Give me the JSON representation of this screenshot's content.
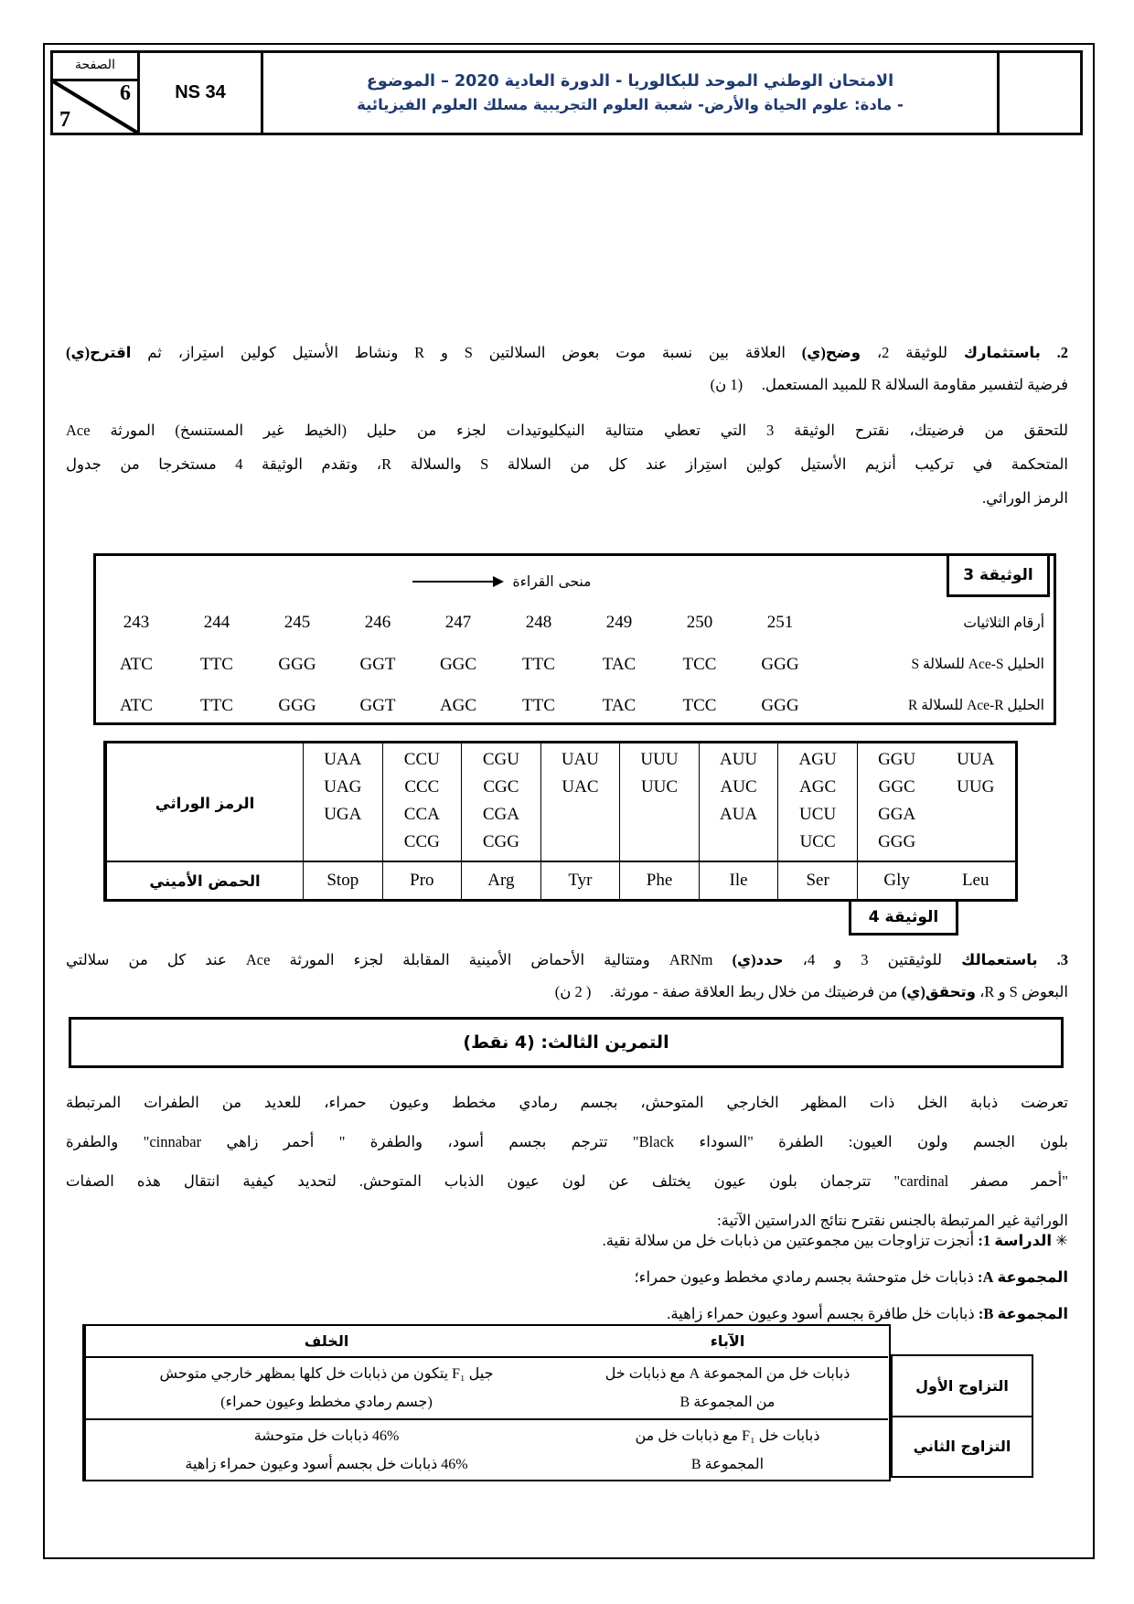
{
  "header": {
    "page_label": "الصفحة",
    "page_current": "6",
    "page_total": "7",
    "ns": "NS 34",
    "title_line1": "الامتحان الوطني الموحد للبكالوريا - الدورة العادية 2020 – الموضوع",
    "title_line2": "- مادة: علوم الحياة والأرض- شعبة العلوم التجريبية مسلك العلوم الفيزيائية",
    "title_color": "#1f3a70"
  },
  "q2": {
    "lines": [
      [
        {
          "b": true,
          "t": "2. باستثمارك"
        },
        {
          "b": false,
          "t": " للوثيقة 2، "
        },
        {
          "b": true,
          "t": "وضح(ي)"
        },
        {
          "b": false,
          "t": " العلاقة بين نسبة موت بعوض السلالتين S و R ونشاط الأستيل كولين استِراز، ثم "
        },
        {
          "b": true,
          "t": "اقترح(ي)"
        }
      ],
      [
        {
          "b": false,
          "t": "فرضية لتفسير مقاومة السلالة R للمبيد المستعمل."
        },
        {
          "b": false,
          "t": "     (1 ن)"
        }
      ]
    ]
  },
  "p2": {
    "lines": [
      "للتحقق من فرضيتك، نقترح الوثيقة 3 التي تعطي متتالية النيكليوتيدات لجزء من حليل (الخيط غير المستنسخ) المورثة Ace",
      "المتحكمة في تركيب أنزيم الأستيل كولين استِراز عند كل من السلالة S والسلالة R، وتقدم الوثيقة 4 مستخرجا من جدول",
      "الرمز الوراثي."
    ]
  },
  "doc3": {
    "label": "الوثيقة 3",
    "reading_direction_label": "منحى القراءة",
    "numbers_row_label": "أرقام الثلاثيات",
    "numbers": [
      "243",
      "244",
      "245",
      "246",
      "247",
      "248",
      "249",
      "250",
      "251"
    ],
    "allele_s_label": "الحليل Ace-S للسلالة S",
    "allele_s": [
      "ATC",
      "TTC",
      "GGG",
      "GGT",
      "GGC",
      "TTC",
      "TAC",
      "TCC",
      "GGG"
    ],
    "allele_r_label": "الحليل Ace-R للسلالة R",
    "allele_r": [
      "ATC",
      "TTC",
      "GGG",
      "GGT",
      "AGC",
      "TTC",
      "TAC",
      "TCC",
      "GGG"
    ]
  },
  "doc4": {
    "label": "الوثيقة 4",
    "codons_header": "الرمز الوراثي",
    "amino_header": "الحمض الأميني",
    "columns": [
      {
        "codons": [
          "UUA",
          "UUG"
        ],
        "amino": "Leu"
      },
      {
        "codons": [
          "GGU",
          "GGC",
          "GGA",
          "GGG"
        ],
        "amino": "Gly"
      },
      {
        "codons": [
          "AGU",
          "AGC",
          "UCU",
          "UCC"
        ],
        "amino": "Ser"
      },
      {
        "codons": [
          "AUU",
          "AUC",
          "AUA"
        ],
        "amino": "Ile"
      },
      {
        "codons": [
          "UUU",
          "UUC"
        ],
        "amino": "Phe"
      },
      {
        "codons": [
          "UAU",
          "UAC"
        ],
        "amino": "Tyr"
      },
      {
        "codons": [
          "CGU",
          "CGC",
          "CGA",
          "CGG"
        ],
        "amino": "Arg"
      },
      {
        "codons": [
          "CCU",
          "CCC",
          "CCA",
          "CCG"
        ],
        "amino": "Pro"
      },
      {
        "codons": [
          "UAA",
          "UAG",
          "UGA"
        ],
        "amino": "Stop"
      }
    ]
  },
  "q3": {
    "lines": [
      [
        {
          "b": true,
          "t": "3. باستعمالك"
        },
        {
          "b": false,
          "t": " للوثيقتين 3 و 4، "
        },
        {
          "b": true,
          "t": "حدد(ي)"
        },
        {
          "b": false,
          "t": " ARNm ومتتالية الأحماض الأمينية المقابلة لجزء المورثة Ace عند كل من سلالتي"
        }
      ],
      [
        {
          "b": false,
          "t": "البعوض S و R، "
        },
        {
          "b": true,
          "t": "وتحقق(ي)"
        },
        {
          "b": false,
          "t": " من فرضيتك من خلال ربط العلاقة صفة - مورثة."
        },
        {
          "b": false,
          "t": "     ( 2 ن)"
        }
      ]
    ]
  },
  "exercise3": {
    "title": "التمرين الثالث: (4 نقط)"
  },
  "p3": {
    "lines": [
      "تعرضت ذبابة الخل ذات المظهر الخارجي المتوحش، بجسم رمادي مخطط وعيون حمراء، للعديد من الطفرات المرتبطة",
      "بلون الجسم ولون العيون: الطفرة \"السوداء Black\" تترجم بجسم أسود، والطفرة \" أحمر زاهي cinnabar\" والطفرة",
      "\"أحمر مصفر cardinal\" تترجمان بلون عيون يختلف عن لون عيون الذباب المتوحش. لتحديد كيفية انتقال هذه الصفات",
      "الوراثية غير المرتبطة بالجنس نقترح نتائج الدراستين الآتية:"
    ]
  },
  "study1": {
    "intro": [
      {
        "b": false,
        "t": "✳ "
      },
      {
        "b": true,
        "t": "الدراسة 1:"
      },
      {
        "b": false,
        "t": " أنجزت تزاوجات بين مجموعتين من ذبابات خل من سلالة نقية."
      }
    ],
    "group_a": [
      {
        "b": true,
        "t": "المجموعة A:"
      },
      {
        "b": false,
        "t": " ذبابات خل متوحشة بجسم رمادي مخطط وعيون حمراء؛"
      }
    ],
    "group_b": [
      {
        "b": true,
        "t": "المجموعة B:"
      },
      {
        "b": false,
        "t": " ذبابات خل طافرة بجسم أسود وعيون حمراء زاهية."
      }
    ]
  },
  "crosses": {
    "offspring_header": "الخلف",
    "parents_header": "الآباء",
    "rows": [
      {
        "name": "التزاوج الأول",
        "parents_lines": [
          "ذبابات خل من المجموعة A مع ذبابات خل",
          "من المجموعة B"
        ],
        "offspring_lines": [
          "جيل F₁ يتكون من ذبابات خل كلها بمظهر خارجي متوحش",
          "(جسم رمادي مخطط وعيون حمراء)"
        ]
      },
      {
        "name": "التزاوج الثاني",
        "parents_lines": [
          "ذبابات خل F₁ مع ذبابات خل من",
          "المجموعة B"
        ],
        "offspring_lines": [
          "46% ذبابات خل متوحشة",
          "46% ذبابات خل بجسم أسود وعيون حمراء زاهية"
        ]
      }
    ]
  }
}
